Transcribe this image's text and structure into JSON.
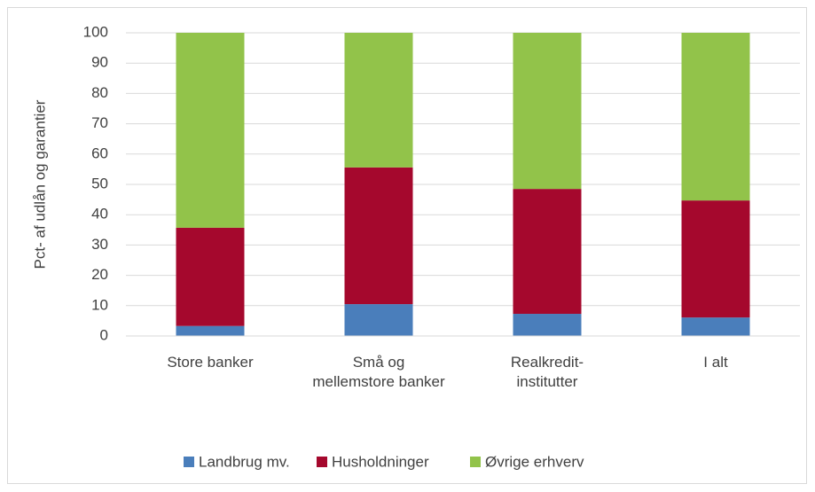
{
  "chart_data": {
    "type": "stacked_bar",
    "y_label": "Pct- af udlån og garantier",
    "categories": [
      "Store banker",
      "Små og mellemstore banker",
      "Realkredit-institutter",
      "I alt"
    ],
    "series": [
      {
        "name": "Landbrug mv.",
        "color": "#4a7ebb",
        "values": [
          3.3,
          10.5,
          7.3,
          6.1
        ]
      },
      {
        "name": "Husholdninger",
        "color": "#a5082d",
        "values": [
          32.4,
          45.1,
          41.2,
          38.6
        ]
      },
      {
        "name": "Øvrige erhverv",
        "color": "#92c34a",
        "values": [
          64.3,
          44.4,
          51.5,
          55.3
        ]
      }
    ],
    "ylim": [
      0,
      100
    ],
    "yticks": [
      0,
      10,
      20,
      30,
      40,
      50,
      60,
      70,
      80,
      90,
      100
    ],
    "grid": true,
    "legend": "bottom"
  }
}
